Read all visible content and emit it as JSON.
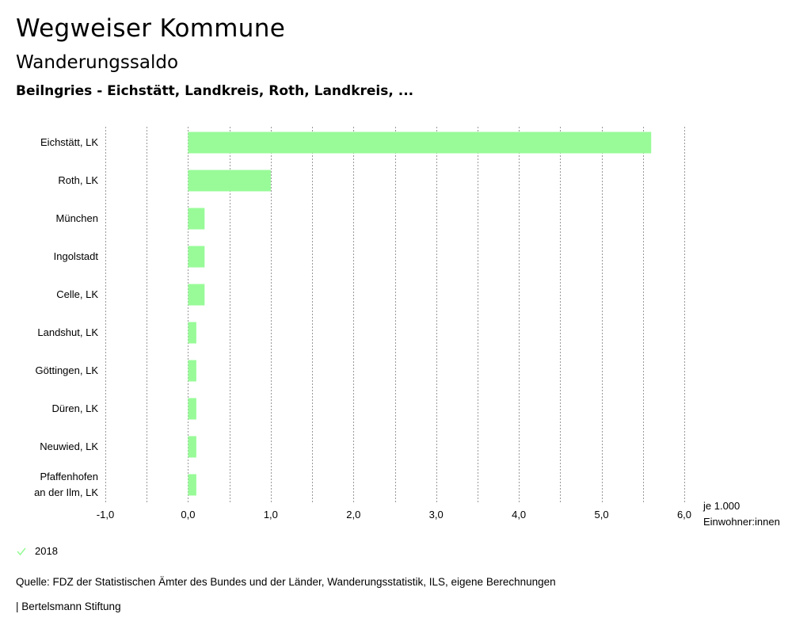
{
  "header": {
    "title": "Wegweiser Kommune",
    "subtitle": "Wanderungssaldo",
    "region": "Beilngries - Eichstätt, Landkreis, Roth, Landkreis, ..."
  },
  "chart_data": {
    "type": "bar",
    "orientation": "horizontal",
    "categories": [
      "Eichstätt, LK",
      "Roth, LK",
      "München",
      "Ingolstadt",
      "Celle, LK",
      "Landshut, LK",
      "Göttingen, LK",
      "Düren, LK",
      "Neuwied, LK",
      "Pfaffenhofen an der Ilm, LK"
    ],
    "category_lines": [
      [
        "Eichstätt, LK"
      ],
      [
        "Roth, LK"
      ],
      [
        "München"
      ],
      [
        "Ingolstadt"
      ],
      [
        "Celle, LK"
      ],
      [
        "Landshut, LK"
      ],
      [
        "Göttingen, LK"
      ],
      [
        "Düren, LK"
      ],
      [
        "Neuwied, LK"
      ],
      [
        "Pfaffenhofen",
        "an der Ilm, LK"
      ]
    ],
    "series": [
      {
        "name": "2018",
        "values": [
          5.6,
          1.0,
          0.2,
          0.2,
          0.2,
          0.1,
          0.1,
          0.1,
          0.1,
          0.1
        ]
      }
    ],
    "xlim": [
      -1.0,
      6.0
    ],
    "xticks": [
      -1.0,
      0.0,
      1.0,
      2.0,
      3.0,
      4.0,
      5.0,
      6.0
    ],
    "xtick_labels": [
      "-1,0",
      "0,0",
      "1,0",
      "2,0",
      "3,0",
      "4,0",
      "5,0",
      "6,0"
    ],
    "minor_gridlines": true,
    "xlabel": [
      "je 1.000",
      "Einwohner:innen"
    ],
    "color": "#98fb98",
    "grid_color": "#999999"
  },
  "legend": {
    "label": "2018",
    "color": "#98fb98"
  },
  "footer": {
    "source": "Quelle: FDZ der Statistischen Ämter des Bundes und der Länder, Wanderungsstatistik, ILS, eigene Berechnungen",
    "credit": "| Bertelsmann Stiftung"
  }
}
